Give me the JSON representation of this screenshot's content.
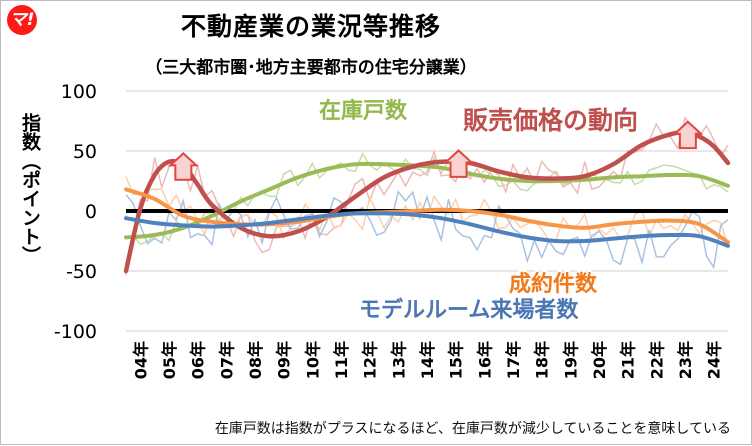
{
  "logo": "マ!",
  "chart_data": {
    "type": "line",
    "title": "不動産業の業況等推移",
    "subtitle": "（三大都市圏･地方主要都市の住宅分譲業）",
    "ylabel": "指数（ポイント）",
    "ylim": [
      -100,
      100
    ],
    "yticks": [
      "100",
      "50",
      "0",
      "-50",
      "-100"
    ],
    "xlim": [
      2004,
      2025
    ],
    "categories": [
      "04年",
      "05年",
      "06年",
      "07年",
      "08年",
      "09年",
      "10年",
      "11年",
      "12年",
      "13年",
      "14年",
      "15年",
      "16年",
      "17年",
      "18年",
      "19年",
      "20年",
      "21年",
      "22年",
      "23年",
      "24年"
    ],
    "grid": true,
    "series": [
      {
        "name": "在庫戸数",
        "color": "#9bbb59",
        "x": [
          2004,
          2005,
          2006,
          2007,
          2008,
          2009,
          2010,
          2011,
          2012,
          2013,
          2014,
          2015,
          2016,
          2017,
          2018,
          2019,
          2020,
          2021,
          2022,
          2023,
          2024,
          2025
        ],
        "values": [
          -22,
          -20,
          -14,
          -4,
          8,
          18,
          28,
          35,
          39,
          39,
          38,
          36,
          31,
          27,
          25,
          25,
          26,
          28,
          29,
          30,
          29,
          21
        ]
      },
      {
        "name": "販売価格の動向",
        "color": "#c0504d",
        "x": [
          2004,
          2004.5,
          2005,
          2005.5,
          2006,
          2006.5,
          2007,
          2008,
          2009,
          2010,
          2011,
          2012,
          2013,
          2014,
          2015,
          2016,
          2017,
          2018,
          2019,
          2020,
          2021,
          2022,
          2023,
          2023.5,
          2024,
          2024.5,
          2025
        ],
        "values": [
          -50,
          2,
          30,
          41,
          38,
          22,
          5,
          -14,
          -21,
          -17,
          -5,
          12,
          28,
          37,
          41,
          40,
          33,
          28,
          27,
          29,
          39,
          55,
          64,
          65,
          62,
          54,
          40
        ]
      },
      {
        "name": "成約件数",
        "color": "#f79646",
        "x": [
          2004,
          2005,
          2006,
          2007,
          2008,
          2009,
          2010,
          2011,
          2012,
          2013,
          2014,
          2015,
          2016,
          2017,
          2018,
          2019,
          2020,
          2021,
          2022,
          2023,
          2024,
          2025
        ],
        "values": [
          18,
          10,
          -4,
          -9,
          -11,
          -11,
          -9,
          -5,
          -2,
          -1,
          0,
          1,
          0,
          -3,
          -8,
          -12,
          -14,
          -11,
          -9,
          -8,
          -11,
          -26
        ]
      },
      {
        "name": "モデルルーム来場者数",
        "color": "#4f81bd",
        "x": [
          2004,
          2005,
          2006,
          2007,
          2008,
          2009,
          2010,
          2011,
          2012,
          2013,
          2014,
          2015,
          2016,
          2017,
          2018,
          2019,
          2020,
          2021,
          2022,
          2023,
          2024,
          2025
        ],
        "values": [
          -6,
          -10,
          -12,
          -13,
          -12,
          -10,
          -7,
          -4,
          -2,
          -2,
          -3,
          -6,
          -11,
          -17,
          -22,
          -25,
          -25,
          -23,
          -21,
          -20,
          -21,
          -29
        ]
      }
    ],
    "annotation_arrows_x": [
      2006,
      2015.6,
      2023.6
    ]
  },
  "footnote": "在庫戸数は指数がプラスになるほど、在庫戸数が減少していることを意味している"
}
